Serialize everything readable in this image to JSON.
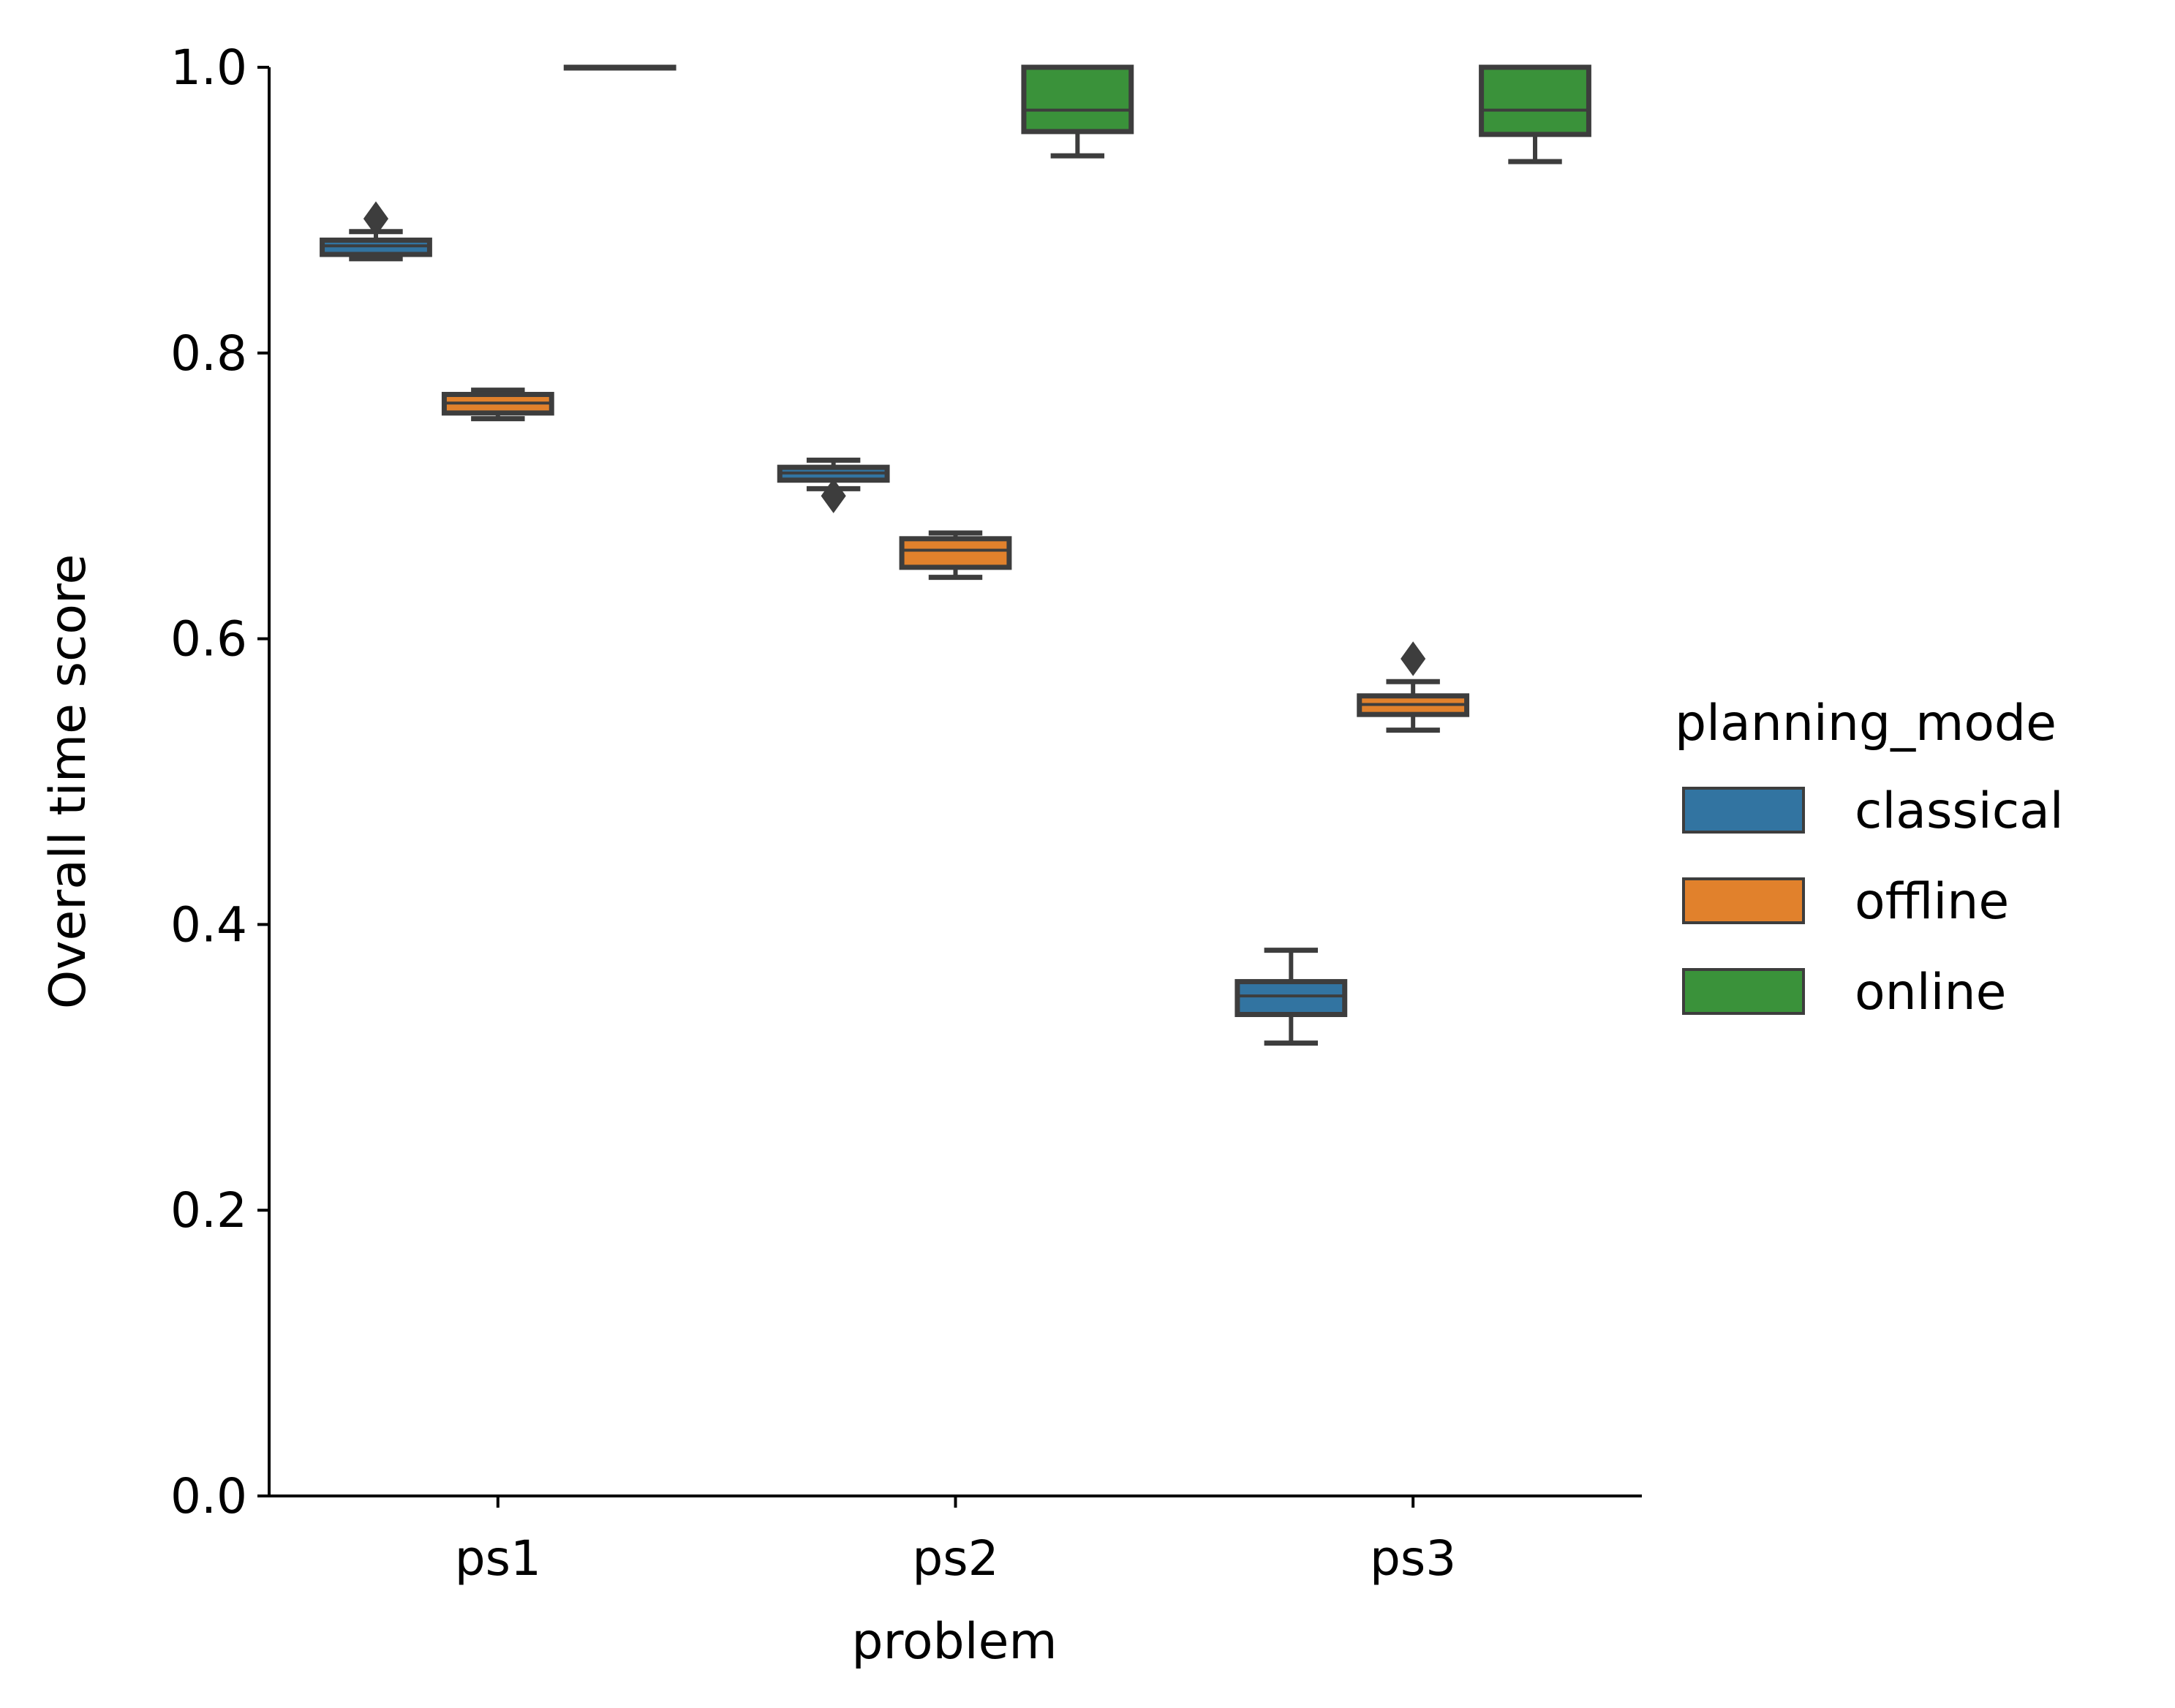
{
  "chart_data": {
    "type": "box",
    "xlabel": "problem",
    "ylabel": "Overall time score",
    "ylim": [
      0,
      1
    ],
    "yticks": [
      "0.0",
      "0.2",
      "0.4",
      "0.6",
      "0.8",
      "1.0"
    ],
    "categories": [
      "ps1",
      "ps2",
      "ps3"
    ],
    "legend": {
      "title": "planning_mode",
      "position": "right"
    },
    "grid": false,
    "series": [
      {
        "name": "classical",
        "color": "#3274a1",
        "boxes": [
          {
            "category": "ps1",
            "whisker_low": 0.866,
            "q1": 0.869,
            "median": 0.875,
            "q3": 0.879,
            "whisker_high": 0.885,
            "outliers": [
              0.894
            ]
          },
          {
            "category": "ps2",
            "whisker_low": 0.705,
            "q1": 0.711,
            "median": 0.716,
            "q3": 0.72,
            "whisker_high": 0.725,
            "outliers": [
              0.7
            ]
          },
          {
            "category": "ps3",
            "whisker_low": 0.317,
            "q1": 0.337,
            "median": 0.35,
            "q3": 0.36,
            "whisker_high": 0.382,
            "outliers": []
          }
        ]
      },
      {
        "name": "offline",
        "color": "#e1812c",
        "boxes": [
          {
            "category": "ps1",
            "whisker_low": 0.754,
            "q1": 0.758,
            "median": 0.765,
            "q3": 0.771,
            "whisker_high": 0.774,
            "outliers": []
          },
          {
            "category": "ps2",
            "whisker_low": 0.643,
            "q1": 0.65,
            "median": 0.662,
            "q3": 0.67,
            "whisker_high": 0.674,
            "outliers": []
          },
          {
            "category": "ps3",
            "whisker_low": 0.536,
            "q1": 0.547,
            "median": 0.554,
            "q3": 0.56,
            "whisker_high": 0.57,
            "outliers": [
              0.586
            ]
          }
        ]
      },
      {
        "name": "online",
        "color": "#3a923a",
        "boxes": [
          {
            "category": "ps1",
            "whisker_low": 1.0,
            "q1": 1.0,
            "median": 1.0,
            "q3": 1.0,
            "whisker_high": 1.0,
            "outliers": []
          },
          {
            "category": "ps2",
            "whisker_low": 0.938,
            "q1": 0.955,
            "median": 0.97,
            "q3": 1.0,
            "whisker_high": 1.0,
            "outliers": []
          },
          {
            "category": "ps3",
            "whisker_low": 0.934,
            "q1": 0.953,
            "median": 0.97,
            "q3": 1.0,
            "whisker_high": 1.0,
            "outliers": []
          }
        ]
      }
    ]
  }
}
